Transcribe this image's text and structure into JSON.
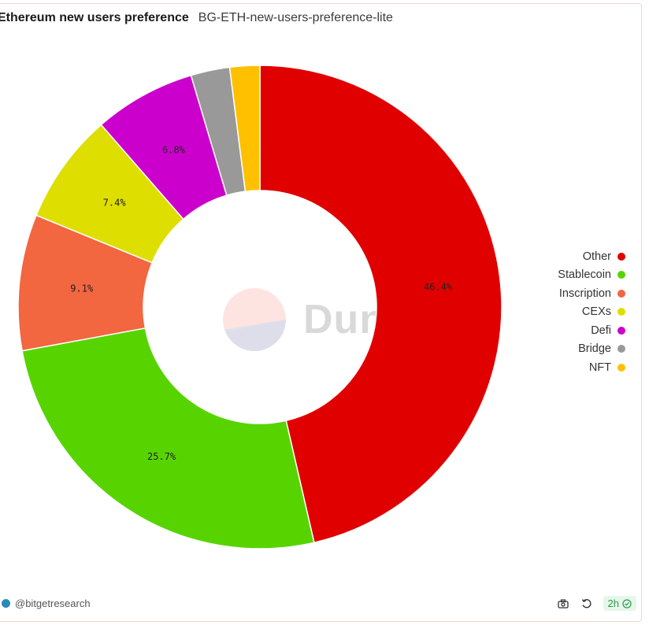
{
  "header": {
    "title": "Ethereum new users preference",
    "subtitle": "BG-ETH-new-users-preference-lite"
  },
  "chart_data": {
    "type": "pie",
    "title": "Ethereum new users preference",
    "donut": true,
    "legend_position": "right",
    "slices": [
      {
        "label": "Other",
        "value": 46.4,
        "display": "46.4%",
        "color": "#e00000"
      },
      {
        "label": "Stablecoin",
        "value": 25.7,
        "display": "25.7%",
        "color": "#57d400"
      },
      {
        "label": "Inscription",
        "value": 9.1,
        "display": "9.1%",
        "color": "#f26640"
      },
      {
        "label": "CEXs",
        "value": 7.4,
        "display": "7.4%",
        "color": "#dede00"
      },
      {
        "label": "Defi",
        "value": 6.8,
        "display": "6.8%",
        "color": "#cc00cc"
      },
      {
        "label": "Bridge",
        "value": 2.6,
        "display": "",
        "color": "#999999"
      },
      {
        "label": "NFT",
        "value": 2.0,
        "display": "",
        "color": "#ffc000"
      }
    ]
  },
  "watermark": {
    "text": "Dune"
  },
  "footer": {
    "author": "@bitgetresearch",
    "refresh_badge": "2h",
    "icons": [
      "camera-icon",
      "refresh-icon",
      "check-circle-icon"
    ]
  }
}
